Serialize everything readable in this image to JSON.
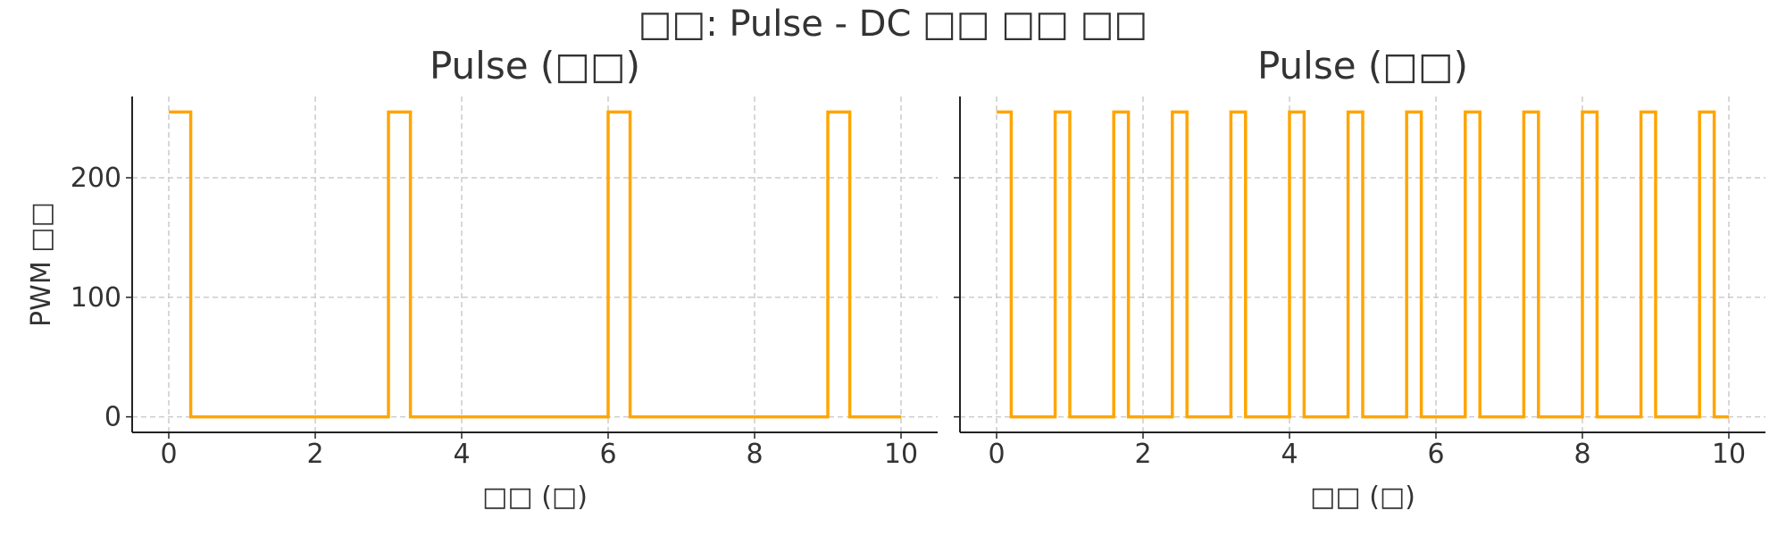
{
  "suptitle": "□□: Pulse - DC □□ □□ □□",
  "chart_data": [
    {
      "type": "line",
      "title": "Pulse (□□)",
      "xlabel": "□□ (□)",
      "ylabel": "PWM □□",
      "xlim": [
        -0.5,
        10.5
      ],
      "ylim": [
        -13,
        268
      ],
      "xticks": [
        0,
        2,
        4,
        6,
        8,
        10
      ],
      "yticks": [
        0,
        100,
        200
      ],
      "grid": true,
      "color": "#FFA500",
      "series": [
        {
          "drawstyle": "steps-post",
          "x": [
            0,
            0.3,
            3.0,
            3.3,
            6.0,
            6.3,
            9.0,
            9.3,
            10.0
          ],
          "y": [
            255,
            0,
            255,
            0,
            255,
            0,
            255,
            0,
            0
          ]
        }
      ]
    },
    {
      "type": "line",
      "title": "Pulse (□□)",
      "xlabel": "□□ (□)",
      "ylabel": "",
      "xlim": [
        -0.5,
        10.5
      ],
      "ylim": [
        -13,
        268
      ],
      "xticks": [
        0,
        2,
        4,
        6,
        8,
        10
      ],
      "yticks": [
        0,
        100,
        200
      ],
      "show_ytick_labels": false,
      "grid": true,
      "color": "#FFA500",
      "series": [
        {
          "drawstyle": "steps-post",
          "x": [
            0,
            0.2,
            0.8,
            1.0,
            1.6,
            1.8,
            2.4,
            2.6,
            3.2,
            3.4,
            4.0,
            4.2,
            4.8,
            5.0,
            5.6,
            5.8,
            6.4,
            6.6,
            7.2,
            7.4,
            8.0,
            8.2,
            8.8,
            9.0,
            9.6,
            9.8,
            10.0
          ],
          "y": [
            255,
            0,
            255,
            0,
            255,
            0,
            255,
            0,
            255,
            0,
            255,
            0,
            255,
            0,
            255,
            0,
            255,
            0,
            255,
            0,
            255,
            0,
            255,
            0,
            255,
            0,
            0
          ]
        }
      ]
    }
  ]
}
